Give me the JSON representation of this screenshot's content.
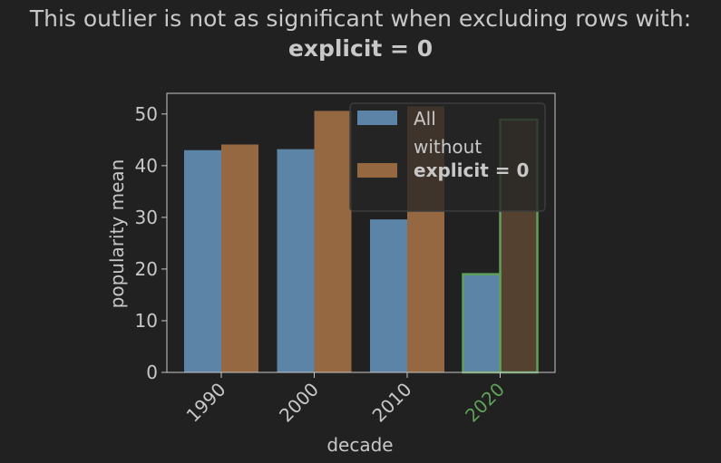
{
  "title": {
    "line1": "This outlier is not as significant when excluding rows with:",
    "line2": "explicit = 0"
  },
  "chart_data": {
    "type": "bar",
    "categories": [
      "1990",
      "2000",
      "2010",
      "2020"
    ],
    "highlight_category": "2020",
    "series": [
      {
        "name": "All",
        "values": [
          43,
          43.2,
          29.6,
          19
        ]
      },
      {
        "name": "without explicit = 0",
        "values": [
          44.1,
          50.6,
          51.5,
          48.9
        ]
      }
    ],
    "xlabel": "decade",
    "ylabel": "popularity mean",
    "ylim": [
      0,
      54
    ],
    "yticks": [
      0,
      10,
      20,
      30,
      40,
      50
    ],
    "legend": {
      "placement": "top-right",
      "entries": [
        {
          "line1": "All",
          "line2": ""
        },
        {
          "line1": "without",
          "line2": "explicit = 0"
        }
      ]
    },
    "colors": {
      "series": [
        "#5b84a6",
        "#956841"
      ],
      "highlight": "#5fa05a",
      "axis": "#c8c8c8",
      "text": "#c8c8c8",
      "background": "#212121"
    }
  }
}
